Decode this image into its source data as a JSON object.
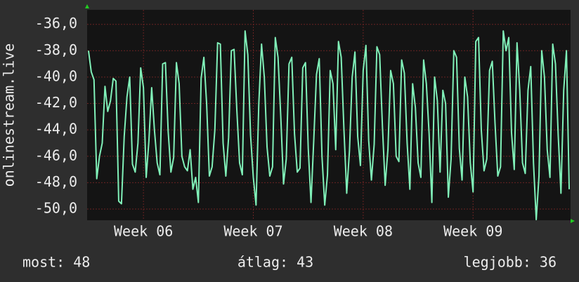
{
  "chart_data": {
    "type": "line",
    "ylabel": "onlinestream.live",
    "stats": [
      "most: 48",
      "átlag: 43",
      "legjobb: 36"
    ],
    "color": "#80f0b8",
    "grid": true,
    "ylim": [
      -50.85,
      -34.9
    ],
    "yticks": [
      {
        "value": -36,
        "label": "-36,0"
      },
      {
        "value": -38,
        "label": "-38,0"
      },
      {
        "value": -40,
        "label": "-40,0"
      },
      {
        "value": -42,
        "label": "-42,0"
      },
      {
        "value": -44,
        "label": "-44,0"
      },
      {
        "value": -46,
        "label": "-46,0"
      },
      {
        "value": -48,
        "label": "-48,0"
      },
      {
        "value": -50,
        "label": "-50,0"
      }
    ],
    "categories": [
      null,
      null,
      null,
      null,
      null,
      null,
      null,
      null,
      null,
      null,
      null,
      null,
      null,
      null,
      null,
      null,
      null,
      null,
      null,
      null,
      "Week 06",
      null,
      null,
      null,
      null,
      null,
      null,
      null,
      null,
      null,
      null,
      null,
      null,
      null,
      null,
      null,
      null,
      null,
      null,
      null,
      null,
      null,
      null,
      null,
      null,
      null,
      null,
      null,
      null,
      null,
      null,
      null,
      null,
      null,
      null,
      null,
      null,
      null,
      null,
      null,
      "Week 07",
      null,
      null,
      null,
      null,
      null,
      null,
      null,
      null,
      null,
      null,
      null,
      null,
      null,
      null,
      null,
      null,
      null,
      null,
      null,
      null,
      null,
      null,
      null,
      null,
      null,
      null,
      null,
      null,
      null,
      null,
      null,
      null,
      null,
      null,
      null,
      null,
      null,
      null,
      null,
      "Week 08",
      null,
      null,
      null,
      null,
      null,
      null,
      null,
      null,
      null,
      null,
      null,
      null,
      null,
      null,
      null,
      null,
      null,
      null,
      null,
      null,
      null,
      null,
      null,
      null,
      null,
      null,
      null,
      null,
      null,
      null,
      null,
      null,
      null,
      null,
      null,
      null,
      null,
      null,
      null,
      "Week 09",
      null,
      null,
      null,
      null,
      null,
      null,
      null,
      null,
      null,
      null,
      null,
      null,
      null,
      null,
      null,
      null,
      null,
      null,
      null,
      null,
      null,
      null,
      null,
      null,
      null,
      null,
      null,
      null,
      null,
      null,
      null,
      null,
      null,
      null,
      null
    ],
    "values": [
      -38,
      -39.6,
      -40.2,
      -47.7,
      -46,
      -45,
      -40.7,
      -42.6,
      -41.8,
      -40.1,
      -40.3,
      -49.4,
      -49.6,
      -44.5,
      -41.5,
      -40,
      -46.6,
      -47.2,
      -45,
      -39.3,
      -40.8,
      -47.6,
      -44.8,
      -40.8,
      -44,
      -46.5,
      -47.4,
      -39,
      -38.9,
      -44.1,
      -47.2,
      -46.1,
      -38.9,
      -40.5,
      -46,
      -46.8,
      -47.1,
      -45.5,
      -48.5,
      -47.6,
      -49.5,
      -40.1,
      -38.5,
      -42,
      -47.5,
      -46.8,
      -44,
      -37.4,
      -37.5,
      -45,
      -47.5,
      -44.6,
      -38,
      -37.9,
      -42.5,
      -46.5,
      -47.4,
      -36.5,
      -38.3,
      -44.4,
      -47.6,
      -49.7,
      -42,
      -37.5,
      -40,
      -45.3,
      -47.5,
      -46.8,
      -37,
      -38.5,
      -43,
      -48.1,
      -46.2,
      -39,
      -38.5,
      -44.3,
      -47.2,
      -46.9,
      -39.3,
      -38.9,
      -45.4,
      -49.5,
      -44.8,
      -39.8,
      -38.6,
      -46,
      -49.7,
      -47.4,
      -39.5,
      -40.5,
      -45.5,
      -37.3,
      -38.5,
      -44,
      -48.8,
      -45.6,
      -40,
      -38.1,
      -44.5,
      -46.7,
      -39.5,
      -37.6,
      -44.8,
      -47.8,
      -45.1,
      -37.7,
      -38.3,
      -43.7,
      -48.2,
      -45.5,
      -39.5,
      -40.5,
      -46,
      -46.4,
      -38.7,
      -39.7,
      -45,
      -48.5,
      -40.5,
      -42.3,
      -46.5,
      -47.6,
      -38.7,
      -40.5,
      -44.3,
      -49.5,
      -40,
      -41.8,
      -47.2,
      -41,
      -42,
      -49.1,
      -46.2,
      -38,
      -38.5,
      -45.4,
      -47.8,
      -40,
      -41.5,
      -46.5,
      -48.7,
      -37.3,
      -37,
      -44,
      -47.1,
      -46.2,
      -39.5,
      -38.8,
      -43.5,
      -47.5,
      -46.8,
      -36.5,
      -38,
      -37,
      -44.2,
      -47,
      -37.4,
      -41,
      -46.5,
      -47.3,
      -41,
      -39.2,
      -46.5,
      -50.8,
      -47.5,
      -38,
      -40,
      -45.5,
      -47.6,
      -37.5,
      -39,
      -44.4,
      -48.8,
      -41,
      -38,
      -48.5
    ]
  }
}
